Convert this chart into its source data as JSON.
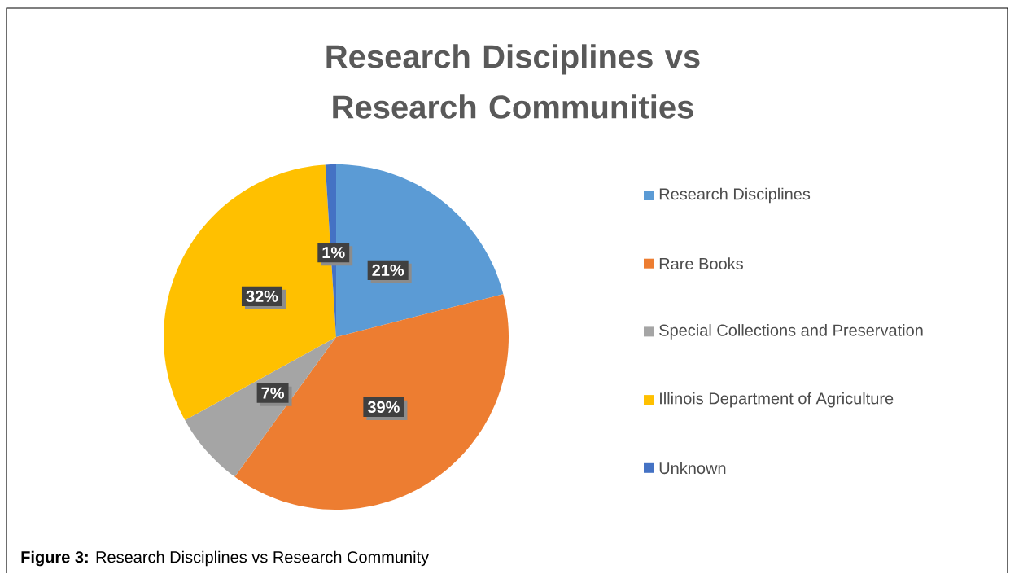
{
  "chart_data": {
    "type": "pie",
    "title": "Research Disciplines vs Research Communities",
    "categories": [
      "Research Disciplines",
      "Rare Books",
      "Special Collections and Preservation",
      "Illinois Department of Agriculture",
      "Unknown"
    ],
    "values": [
      21,
      39,
      7,
      32,
      1
    ],
    "colors": [
      "#5b9bd5",
      "#ed7d31",
      "#a5a5a5",
      "#ffc000",
      "#4472c4"
    ],
    "value_labels": [
      "21%",
      "39%",
      "7%",
      "32%",
      "1%"
    ],
    "legend": "right",
    "annotations": [
      "**Figure 3:** Research Disciplines vs Research Community"
    ]
  }
}
